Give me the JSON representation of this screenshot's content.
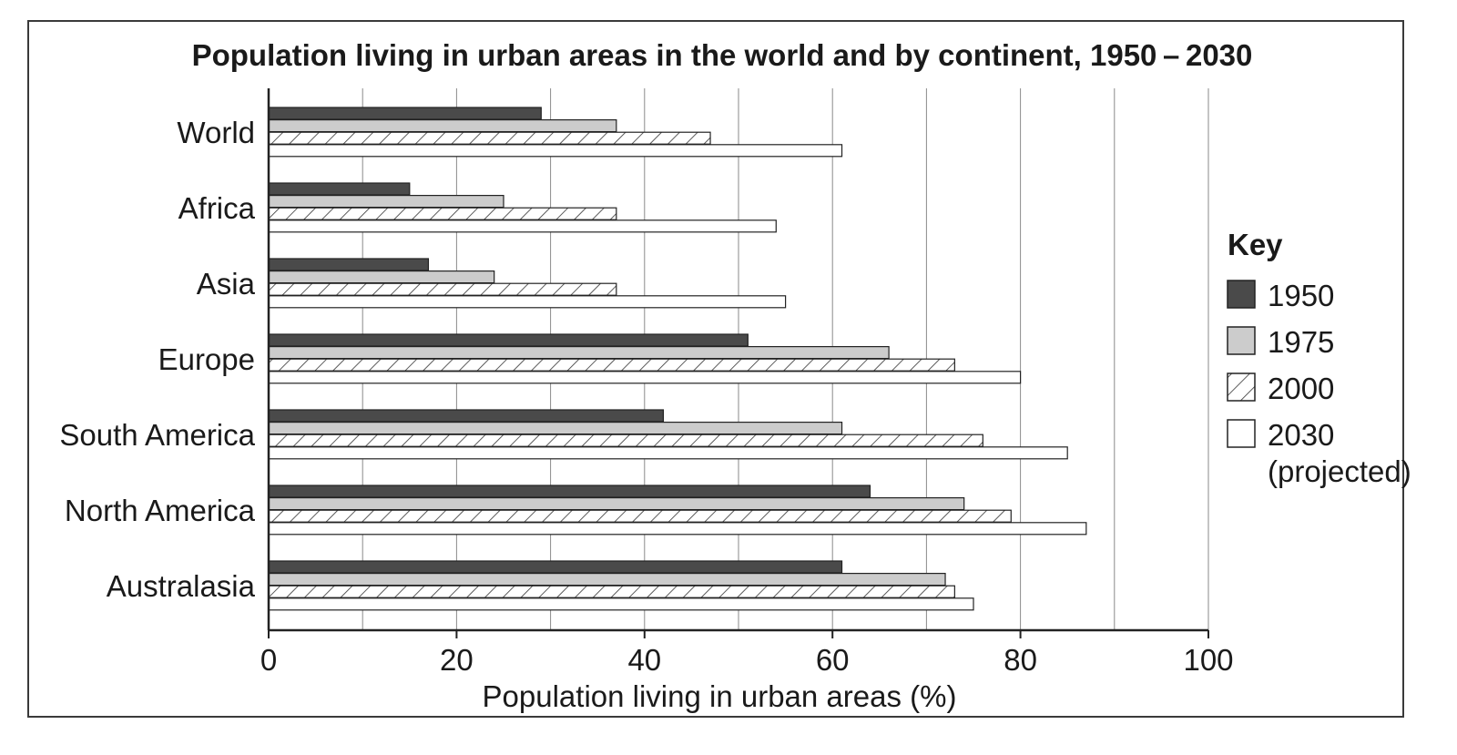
{
  "chart_data": {
    "type": "bar",
    "orientation": "horizontal",
    "title": "Population living in urban areas in the world and by continent, 1950 – 2030",
    "xlabel": "Population living in urban areas (%)",
    "ylabel": "",
    "xlim": [
      0,
      100
    ],
    "xticks": [
      0,
      20,
      40,
      60,
      80,
      100
    ],
    "grid": "vertical lines every 10",
    "legend": {
      "title": "Key",
      "placement": "right"
    },
    "categories": [
      "World",
      "Africa",
      "Asia",
      "Europe",
      "South America",
      "North America",
      "Australasia"
    ],
    "series": [
      {
        "name": "1950",
        "values": [
          29,
          15,
          17,
          51,
          42,
          64,
          61
        ],
        "fill": "#4a4a4a"
      },
      {
        "name": "1975",
        "values": [
          37,
          25,
          24,
          66,
          61,
          74,
          72
        ],
        "fill": "#cccccc"
      },
      {
        "name": "2000",
        "values": [
          47,
          37,
          37,
          73,
          76,
          79,
          73
        ],
        "fill": "hatch"
      },
      {
        "name": "2030",
        "name_line2": "(projected)",
        "values": [
          61,
          54,
          55,
          80,
          85,
          87,
          75
        ],
        "fill": "#ffffff"
      }
    ]
  }
}
